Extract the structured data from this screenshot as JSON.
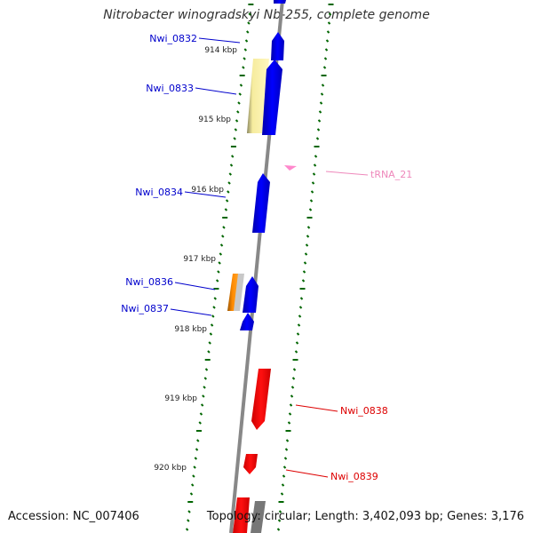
{
  "title": "Nitrobacter winogradskyi Nb-255, complete genome",
  "accession_label": "Accession: NC_007406",
  "topology_label": "Topology: circular; Length: 3,402,093 bp; Genes: 3,176",
  "scale_labels": [
    "914 kbp",
    "915 kbp",
    "916 kbp",
    "917 kbp",
    "918 kbp",
    "919 kbp",
    "920 kbp"
  ],
  "gene_labels": [
    {
      "text": "Nwi_0832",
      "color": "#0000cc"
    },
    {
      "text": "Nwi_0833",
      "color": "#0000cc"
    },
    {
      "text": "Nwi_0834",
      "color": "#0000cc"
    },
    {
      "text": "Nwi_0836",
      "color": "#0000cc"
    },
    {
      "text": "Nwi_0837",
      "color": "#0000cc"
    },
    {
      "text": "Nwi_0838",
      "color": "#dd0000"
    },
    {
      "text": "Nwi_0839",
      "color": "#dd0000"
    },
    {
      "text": "tRNA_21",
      "color": "#ee88bb"
    }
  ],
  "colors": {
    "cds_forward": "#0000ee",
    "cds_reverse": "#ee0000",
    "trna": "#ff77cc",
    "backbone": "#888888",
    "tick_marks": "#006600",
    "pale_gene": "#f2e69a",
    "orange_gene": "#ff8800",
    "gray_gene": "#cccccc"
  }
}
